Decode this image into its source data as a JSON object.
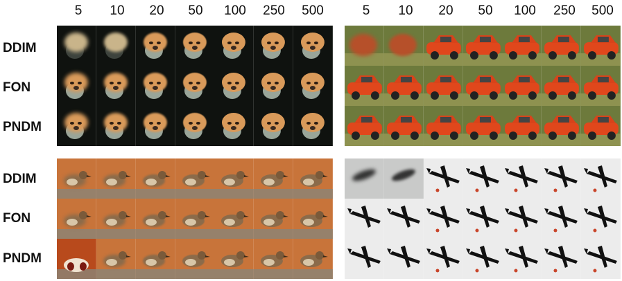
{
  "column_headers_left": [
    "5",
    "10",
    "20",
    "50",
    "100",
    "250",
    "500"
  ],
  "column_headers_right": [
    "5",
    "10",
    "20",
    "50",
    "100",
    "250",
    "500"
  ],
  "row_labels_top": [
    "DDIM",
    "FON",
    "PNDM"
  ],
  "row_labels_bottom": [
    "DDIM",
    "FON",
    "PNDM"
  ],
  "panels": [
    {
      "subject": "dog",
      "background": "#0f120f"
    },
    {
      "subject": "car",
      "background": "#6d7a3c"
    },
    {
      "subject": "bird",
      "background": "#c8743a"
    },
    {
      "subject": "airplane",
      "background": "#e8e8e8"
    }
  ]
}
